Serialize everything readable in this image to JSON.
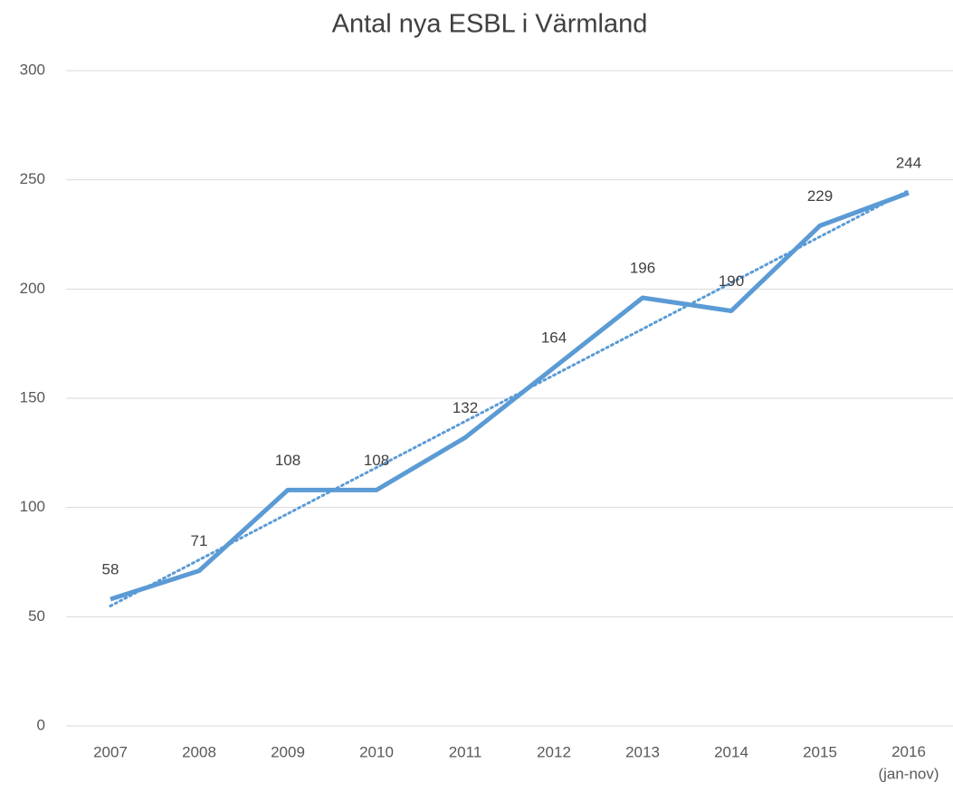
{
  "chart_data": {
    "type": "line",
    "title": "Antal nya ESBL i Värmland",
    "categories": [
      "2007",
      "2008",
      "2009",
      "2010",
      "2011",
      "2012",
      "2013",
      "2014",
      "2015",
      "2016\n(jan-nov)"
    ],
    "values": [
      58,
      71,
      108,
      108,
      132,
      164,
      196,
      190,
      229,
      244
    ],
    "color": "#5b9bd5",
    "trendline": {
      "start": 54.9,
      "end": 245.1
    },
    "ylim": [
      0,
      300
    ],
    "yticks": [
      0,
      50,
      100,
      150,
      200,
      250,
      300
    ],
    "grid": true
  }
}
